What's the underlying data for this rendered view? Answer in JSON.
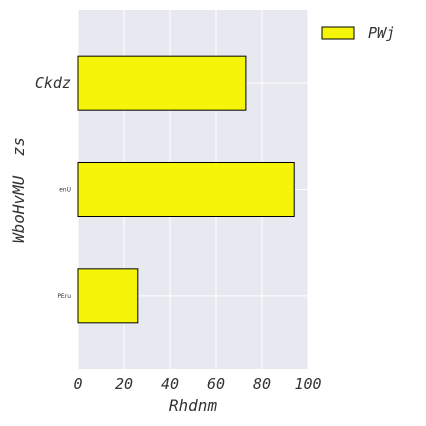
{
  "chart_data": {
    "type": "bar",
    "orientation": "horizontal",
    "categories": [
      "Ckdz",
      "enU",
      "PEru"
    ],
    "series": [
      {
        "name": "PWj",
        "values": [
          73,
          94,
          26
        ]
      }
    ],
    "title": "",
    "xlabel": "Rhdnm",
    "ylabel": "WboHvMU  zs",
    "xlim": [
      0,
      100
    ],
    "xticks": [
      "0",
      "20",
      "40",
      "60",
      "80",
      "100"
    ],
    "grid": true,
    "legend_position": "top-right, outside plot",
    "colors": {
      "bar_fill": "#f5f50a",
      "bar_edge": "#000000",
      "plot_background": "#e8e8f0",
      "grid": "#ffffff",
      "text": "#333333"
    }
  }
}
